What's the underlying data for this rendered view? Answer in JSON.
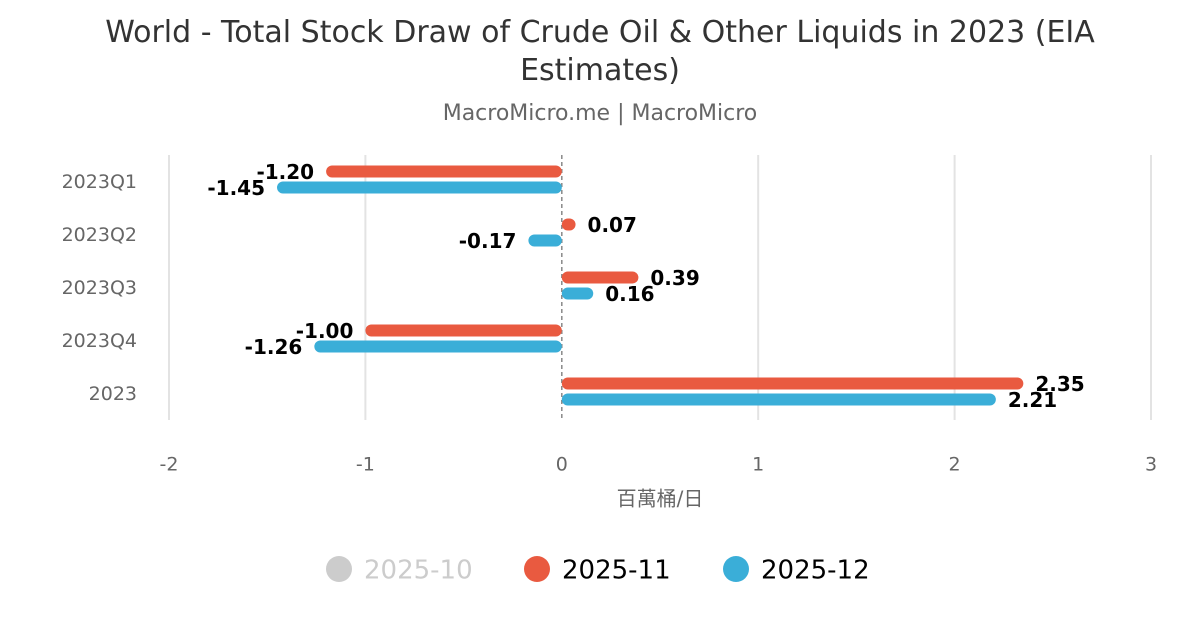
{
  "chart_data": {
    "type": "hbar",
    "title": "World - Total Stock Draw of Crude Oil & Other Liquids in 2023 (EIA Estimates)",
    "subtitle": "MacroMicro.me | MacroMicro",
    "x_label": "百萬桶/日",
    "categories": [
      "2023Q1",
      "2023Q2",
      "2023Q3",
      "2023Q4",
      "2023"
    ],
    "series": [
      {
        "name": "2025-10",
        "color": "#cccccc",
        "hidden": true,
        "values": [
          null,
          null,
          null,
          null,
          null
        ]
      },
      {
        "name": "2025-11",
        "color": "#e95a40",
        "values": [
          -1.2,
          0.07,
          0.39,
          -1.0,
          2.35
        ],
        "value_labels": [
          "-1.20",
          "0.07",
          "0.39",
          "-1.00",
          "2.35"
        ]
      },
      {
        "name": "2025-12",
        "color": "#3aaed8",
        "values": [
          -1.45,
          -0.17,
          0.16,
          -1.26,
          2.21
        ],
        "value_labels": [
          "-1.45",
          "-0.17",
          "0.16",
          "-1.26",
          "2.21"
        ]
      }
    ],
    "xlim": [
      -2,
      3
    ],
    "xticks": [
      -2,
      -1,
      0,
      1,
      2,
      3
    ],
    "grid": true,
    "legend": "bottom"
  }
}
